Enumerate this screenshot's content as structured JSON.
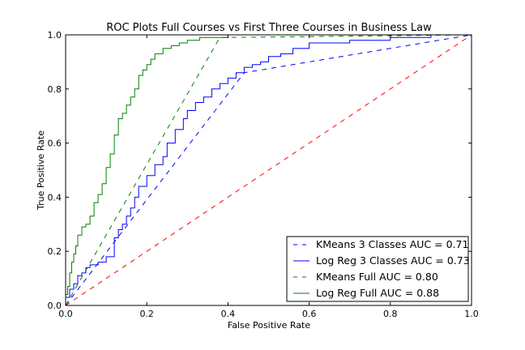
{
  "chart_data": {
    "type": "line",
    "title": "ROC Plots Full Courses vs First Three Courses in Business Law",
    "xlabel": "False Positive Rate",
    "ylabel": "True Positive Rate",
    "xlim": [
      0.0,
      1.0
    ],
    "ylim": [
      0.0,
      1.0
    ],
    "xticks": [
      "0.0",
      "0.2",
      "0.4",
      "0.6",
      "0.8",
      "1.0"
    ],
    "yticks": [
      "0.0",
      "0.2",
      "0.4",
      "0.6",
      "0.8",
      "1.0"
    ],
    "grid": false,
    "legend_position": "bottom-right",
    "series": [
      {
        "name": "KMeans 3 Classes AUC = 0.71",
        "color": "#0000ff",
        "dash": "dashed",
        "x": [
          0.0,
          0.44,
          1.0
        ],
        "y": [
          0.0,
          0.86,
          1.0
        ]
      },
      {
        "name": "Log Reg 3 Classes AUC = 0.73",
        "color": "#0000ff",
        "dash": "solid",
        "x": [
          0.0,
          0.01,
          0.02,
          0.03,
          0.04,
          0.05,
          0.06,
          0.08,
          0.1,
          0.12,
          0.13,
          0.14,
          0.15,
          0.16,
          0.17,
          0.18,
          0.2,
          0.22,
          0.24,
          0.25,
          0.27,
          0.29,
          0.3,
          0.32,
          0.34,
          0.36,
          0.38,
          0.4,
          0.42,
          0.44,
          0.46,
          0.48,
          0.5,
          0.53,
          0.56,
          0.6,
          0.65,
          0.7,
          0.75,
          0.8,
          0.9,
          1.0
        ],
        "y": [
          0.0,
          0.03,
          0.06,
          0.08,
          0.11,
          0.12,
          0.14,
          0.15,
          0.16,
          0.18,
          0.25,
          0.28,
          0.3,
          0.33,
          0.36,
          0.4,
          0.44,
          0.48,
          0.52,
          0.55,
          0.6,
          0.65,
          0.69,
          0.72,
          0.75,
          0.77,
          0.8,
          0.82,
          0.84,
          0.86,
          0.88,
          0.89,
          0.9,
          0.92,
          0.93,
          0.95,
          0.97,
          0.97,
          0.98,
          0.98,
          0.99,
          1.0
        ]
      },
      {
        "name": "KMeans Full AUC = 0.80",
        "color": "#008000",
        "dash": "dashed",
        "x": [
          0.0,
          0.38,
          1.0
        ],
        "y": [
          0.0,
          0.99,
          1.0
        ]
      },
      {
        "name": "Log Reg Full AUC = 0.88",
        "color": "#008000",
        "dash": "solid",
        "x": [
          0.0,
          0.005,
          0.01,
          0.015,
          0.02,
          0.025,
          0.03,
          0.04,
          0.05,
          0.06,
          0.07,
          0.08,
          0.09,
          0.1,
          0.11,
          0.12,
          0.13,
          0.14,
          0.15,
          0.16,
          0.17,
          0.18,
          0.19,
          0.2,
          0.21,
          0.22,
          0.24,
          0.26,
          0.28,
          0.3,
          0.31,
          0.32,
          0.33,
          0.34,
          0.36,
          0.38,
          0.4,
          1.0
        ],
        "y": [
          0.0,
          0.04,
          0.07,
          0.12,
          0.16,
          0.19,
          0.22,
          0.26,
          0.29,
          0.3,
          0.33,
          0.38,
          0.41,
          0.45,
          0.51,
          0.56,
          0.63,
          0.69,
          0.71,
          0.74,
          0.77,
          0.8,
          0.85,
          0.87,
          0.89,
          0.91,
          0.93,
          0.95,
          0.96,
          0.97,
          0.98,
          0.98,
          0.98,
          0.99,
          0.99,
          0.99,
          0.99,
          1.0
        ]
      },
      {
        "name": "",
        "color": "#ff0000",
        "dash": "dashed",
        "x": [
          0.0,
          1.0
        ],
        "y": [
          0.0,
          1.0
        ]
      }
    ]
  }
}
